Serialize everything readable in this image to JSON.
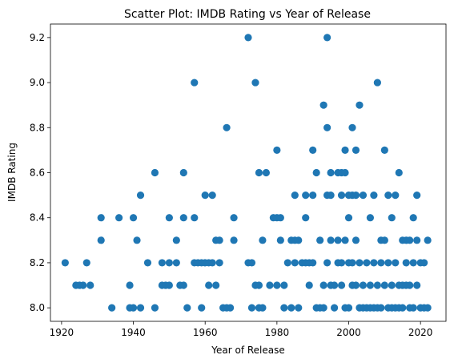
{
  "chart_data": {
    "type": "scatter",
    "title": "Scatter Plot: IMDB Rating vs Year of Release",
    "xlabel": "Year of Release",
    "ylabel": "IMDB Rating",
    "xlim": [
      1916.9,
      2027.1
    ],
    "ylim": [
      7.94,
      9.26
    ],
    "xticks": [
      1920,
      1940,
      1960,
      1980,
      2000,
      2020
    ],
    "yticks": [
      8.0,
      8.2,
      8.4,
      8.6,
      8.8,
      9.0,
      9.2
    ],
    "ytick_labels": [
      "8.0",
      "8.2",
      "8.4",
      "8.6",
      "8.8",
      "9.0",
      "9.2"
    ],
    "grid": false,
    "marker_color": "#1f77b4",
    "points": [
      [
        1921,
        8.2
      ],
      [
        1924,
        8.1
      ],
      [
        1925,
        8.1
      ],
      [
        1926,
        8.1
      ],
      [
        1927,
        8.2
      ],
      [
        1928,
        8.1
      ],
      [
        1931,
        8.4
      ],
      [
        1931,
        8.3
      ],
      [
        1934,
        8.0
      ],
      [
        1936,
        8.4
      ],
      [
        1939,
        8.1
      ],
      [
        1939,
        8.0
      ],
      [
        1940,
        8.4
      ],
      [
        1940,
        8.0
      ],
      [
        1941,
        8.3
      ],
      [
        1942,
        8.5
      ],
      [
        1942,
        8.0
      ],
      [
        1944,
        8.2
      ],
      [
        1946,
        8.6
      ],
      [
        1946,
        8.0
      ],
      [
        1948,
        8.2
      ],
      [
        1948,
        8.1
      ],
      [
        1949,
        8.1
      ],
      [
        1950,
        8.4
      ],
      [
        1950,
        8.2
      ],
      [
        1950,
        8.1
      ],
      [
        1952,
        8.3
      ],
      [
        1952,
        8.2
      ],
      [
        1953,
        8.1
      ],
      [
        1954,
        8.6
      ],
      [
        1954,
        8.4
      ],
      [
        1954,
        8.1
      ],
      [
        1955,
        8.0
      ],
      [
        1957,
        9.0
      ],
      [
        1957,
        8.4
      ],
      [
        1957,
        8.2
      ],
      [
        1958,
        8.2
      ],
      [
        1959,
        8.2
      ],
      [
        1959,
        8.0
      ],
      [
        1960,
        8.5
      ],
      [
        1960,
        8.2
      ],
      [
        1961,
        8.2
      ],
      [
        1961,
        8.1
      ],
      [
        1962,
        8.5
      ],
      [
        1962,
        8.2
      ],
      [
        1963,
        8.3
      ],
      [
        1963,
        8.1
      ],
      [
        1964,
        8.3
      ],
      [
        1964,
        8.2
      ],
      [
        1965,
        8.0
      ],
      [
        1966,
        8.8
      ],
      [
        1966,
        8.0
      ],
      [
        1967,
        8.0
      ],
      [
        1968,
        8.4
      ],
      [
        1968,
        8.3
      ],
      [
        1972,
        9.2
      ],
      [
        1972,
        8.2
      ],
      [
        1973,
        8.0
      ],
      [
        1973,
        8.2
      ],
      [
        1974,
        9.0
      ],
      [
        1974,
        8.1
      ],
      [
        1975,
        8.6
      ],
      [
        1975,
        8.1
      ],
      [
        1975,
        8.0
      ],
      [
        1976,
        8.3
      ],
      [
        1976,
        8.0
      ],
      [
        1977,
        8.6
      ],
      [
        1978,
        8.1
      ],
      [
        1979,
        8.4
      ],
      [
        1980,
        8.7
      ],
      [
        1980,
        8.4
      ],
      [
        1980,
        8.1
      ],
      [
        1981,
        8.4
      ],
      [
        1981,
        8.3
      ],
      [
        1982,
        8.1
      ],
      [
        1982,
        8.0
      ],
      [
        1983,
        8.2
      ],
      [
        1984,
        8.3
      ],
      [
        1984,
        8.0
      ],
      [
        1985,
        8.5
      ],
      [
        1985,
        8.3
      ],
      [
        1985,
        8.2
      ],
      [
        1986,
        8.3
      ],
      [
        1986,
        8.0
      ],
      [
        1987,
        8.2
      ],
      [
        1988,
        8.5
      ],
      [
        1988,
        8.4
      ],
      [
        1988,
        8.2
      ],
      [
        1989,
        8.2
      ],
      [
        1989,
        8.1
      ],
      [
        1990,
        8.7
      ],
      [
        1990,
        8.5
      ],
      [
        1990,
        8.2
      ],
      [
        1991,
        8.6
      ],
      [
        1991,
        8.0
      ],
      [
        1992,
        8.3
      ],
      [
        1992,
        8.0
      ],
      [
        1993,
        8.9
      ],
      [
        1993,
        8.0
      ],
      [
        1993,
        8.1
      ],
      [
        1994,
        9.2
      ],
      [
        1994,
        8.8
      ],
      [
        1994,
        8.5
      ],
      [
        1994,
        8.2
      ],
      [
        1995,
        8.6
      ],
      [
        1995,
        8.5
      ],
      [
        1995,
        8.3
      ],
      [
        1995,
        8.1
      ],
      [
        1996,
        8.1
      ],
      [
        1996,
        8.0
      ],
      [
        1997,
        8.6
      ],
      [
        1997,
        8.3
      ],
      [
        1997,
        8.2
      ],
      [
        1998,
        8.6
      ],
      [
        1998,
        8.5
      ],
      [
        1998,
        8.2
      ],
      [
        1998,
        8.1
      ],
      [
        1999,
        8.7
      ],
      [
        1999,
        8.6
      ],
      [
        1999,
        8.3
      ],
      [
        1999,
        8.0
      ],
      [
        2000,
        8.5
      ],
      [
        2000,
        8.4
      ],
      [
        2000,
        8.2
      ],
      [
        2000,
        8.0
      ],
      [
        2001,
        8.8
      ],
      [
        2001,
        8.5
      ],
      [
        2001,
        8.2
      ],
      [
        2001,
        8.1
      ],
      [
        2002,
        8.7
      ],
      [
        2002,
        8.5
      ],
      [
        2002,
        8.3
      ],
      [
        2002,
        8.1
      ],
      [
        2003,
        8.9
      ],
      [
        2003,
        8.2
      ],
      [
        2003,
        8.0
      ],
      [
        2004,
        8.5
      ],
      [
        2004,
        8.1
      ],
      [
        2004,
        8.0
      ],
      [
        2005,
        8.2
      ],
      [
        2005,
        8.0
      ],
      [
        2006,
        8.4
      ],
      [
        2006,
        8.1
      ],
      [
        2006,
        8.0
      ],
      [
        2007,
        8.5
      ],
      [
        2007,
        8.2
      ],
      [
        2007,
        8.0
      ],
      [
        2008,
        9.0
      ],
      [
        2008,
        8.1
      ],
      [
        2008,
        8.0
      ],
      [
        2009,
        8.3
      ],
      [
        2009,
        8.2
      ],
      [
        2009,
        8.0
      ],
      [
        2010,
        8.7
      ],
      [
        2010,
        8.3
      ],
      [
        2010,
        8.1
      ],
      [
        2011,
        8.5
      ],
      [
        2011,
        8.2
      ],
      [
        2011,
        8.0
      ],
      [
        2012,
        8.4
      ],
      [
        2012,
        8.1
      ],
      [
        2012,
        8.0
      ],
      [
        2013,
        8.5
      ],
      [
        2013,
        8.2
      ],
      [
        2013,
        8.0
      ],
      [
        2014,
        8.6
      ],
      [
        2014,
        8.1
      ],
      [
        2014,
        8.0
      ],
      [
        2015,
        8.3
      ],
      [
        2015,
        8.1
      ],
      [
        2015,
        8.0
      ],
      [
        2016,
        8.3
      ],
      [
        2016,
        8.2
      ],
      [
        2016,
        8.1
      ],
      [
        2017,
        8.3
      ],
      [
        2017,
        8.1
      ],
      [
        2017,
        8.0
      ],
      [
        2018,
        8.4
      ],
      [
        2018,
        8.2
      ],
      [
        2018,
        8.0
      ],
      [
        2019,
        8.5
      ],
      [
        2019,
        8.3
      ],
      [
        2019,
        8.1
      ],
      [
        2020,
        8.2
      ],
      [
        2020,
        8.0
      ],
      [
        2021,
        8.2
      ],
      [
        2021,
        8.0
      ],
      [
        2022,
        8.3
      ],
      [
        2022,
        8.0
      ]
    ]
  }
}
